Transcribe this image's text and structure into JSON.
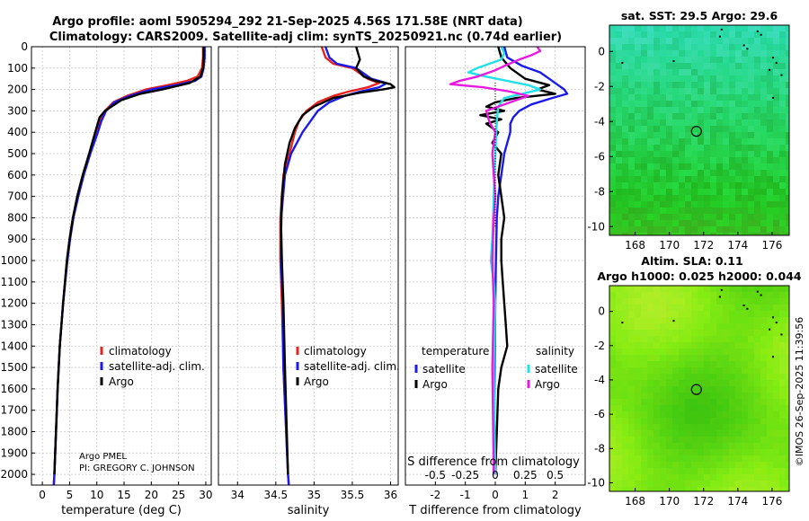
{
  "title": {
    "line1": "Argo profile: aoml 5905294_292 21-Sep-2025 4.56S 171.58E (NRT data)",
    "line2": "Climatology: CARS2009. Satellite-adj clim: synTS_20250921.nc (0.74d earlier)"
  },
  "credit": {
    "line1": "Argo PMEL",
    "line2": "PI: GREGORY C. JOHNSON"
  },
  "watermark": "©IMOS 26-Sep-2025 11:39:56",
  "colors": {
    "climatology": "#e8231c",
    "satellite": "#1a1aef",
    "argo": "#000000",
    "sat_salinity": "#22e0e8",
    "argo_salinity": "#e81ce0"
  },
  "chart_data": [
    {
      "id": "temperature",
      "type": "line",
      "xlabel": "temperature (deg C)",
      "ylabel": "",
      "xlim": [
        -2,
        31
      ],
      "ylim": [
        2050,
        0
      ],
      "xticks": [
        0,
        5,
        10,
        15,
        20,
        25,
        30
      ],
      "yticks": [
        0,
        100,
        200,
        300,
        400,
        500,
        600,
        700,
        800,
        900,
        1000,
        1100,
        1200,
        1300,
        1400,
        1500,
        1600,
        1700,
        1800,
        1900,
        2000
      ],
      "legend": [
        "climatology",
        "satellite-adj. clim.",
        "Argo"
      ],
      "series": [
        {
          "name": "climatology",
          "color": "#e8231c",
          "depth": [
            0,
            50,
            100,
            140,
            160,
            180,
            200,
            230,
            260,
            300,
            350,
            400,
            500,
            600,
            700,
            800,
            900,
            1000,
            1200,
            1400,
            1600,
            1800,
            2000,
            2050
          ],
          "values": [
            29.5,
            29.5,
            29.3,
            28.5,
            26.5,
            23,
            19,
            15.5,
            13,
            11.5,
            10.6,
            10,
            8.7,
            7.5,
            6.5,
            5.6,
            5,
            4.5,
            3.8,
            3.2,
            2.8,
            2.5,
            2.2,
            2.1
          ]
        },
        {
          "name": "satellite-adj. clim.",
          "color": "#1a1aef",
          "depth": [
            0,
            50,
            100,
            140,
            160,
            180,
            200,
            230,
            260,
            300,
            350,
            400,
            500,
            600,
            700,
            800,
            900,
            1000,
            1200,
            1400,
            1600,
            1800,
            2000,
            2050
          ],
          "values": [
            29.8,
            29.8,
            29.6,
            29.2,
            28,
            24.5,
            20,
            16,
            13.2,
            11.7,
            10.8,
            10.2,
            8.8,
            7.6,
            6.6,
            5.7,
            5.1,
            4.6,
            3.8,
            3.2,
            2.8,
            2.5,
            2.2,
            2.1
          ]
        },
        {
          "name": "Argo",
          "color": "#000000",
          "depth": [
            0,
            50,
            100,
            140,
            170,
            200,
            220,
            250,
            300,
            330,
            400,
            500,
            600,
            700,
            800,
            900,
            1000,
            1200,
            1400,
            1600,
            1800,
            2000
          ],
          "values": [
            29.6,
            29.6,
            29.5,
            29,
            27,
            22,
            18,
            14.5,
            11.5,
            10.5,
            9.7,
            8.6,
            7.4,
            6.4,
            5.6,
            5,
            4.5,
            3.8,
            3.2,
            2.8,
            2.5,
            2.2
          ]
        }
      ]
    },
    {
      "id": "salinity",
      "type": "line",
      "xlabel": "salinity",
      "xlim": [
        33.75,
        36.1
      ],
      "ylim": [
        2050,
        0
      ],
      "xticks": [
        34,
        34.5,
        35,
        35.5,
        36
      ],
      "legend": [
        "climatology",
        "satellite-adj. clim.",
        "Argo"
      ],
      "series": [
        {
          "name": "climatology",
          "color": "#e8231c",
          "depth": [
            0,
            50,
            80,
            100,
            150,
            170,
            190,
            210,
            230,
            260,
            300,
            350,
            400,
            500,
            600,
            800,
            1000,
            1200,
            1500,
            2000,
            2050
          ],
          "values": [
            35.1,
            35.15,
            35.25,
            35.5,
            35.7,
            35.85,
            35.7,
            35.45,
            35.25,
            35.05,
            34.9,
            34.8,
            34.75,
            34.68,
            34.6,
            34.56,
            34.56,
            34.58,
            34.6,
            34.66,
            34.67
          ]
        },
        {
          "name": "satellite-adj. clim.",
          "color": "#1a1aef",
          "depth": [
            0,
            50,
            80,
            100,
            150,
            170,
            190,
            210,
            230,
            260,
            300,
            350,
            400,
            500,
            600,
            800,
            1000,
            1200,
            1500,
            2000,
            2050
          ],
          "values": [
            35.15,
            35.2,
            35.3,
            35.55,
            35.75,
            35.95,
            35.85,
            35.6,
            35.4,
            35.2,
            35.05,
            34.95,
            34.85,
            34.7,
            34.62,
            34.57,
            34.57,
            34.59,
            34.6,
            34.66,
            34.67
          ]
        },
        {
          "name": "Argo",
          "color": "#000000",
          "depth": [
            0,
            60,
            100,
            140,
            160,
            175,
            190,
            200,
            215,
            240,
            280,
            320,
            380,
            450,
            550,
            700,
            850,
            1000,
            1200,
            1500,
            2000
          ],
          "values": [
            35.55,
            35.6,
            35.55,
            35.65,
            35.8,
            36.0,
            36.05,
            35.9,
            35.6,
            35.25,
            35.0,
            34.85,
            34.75,
            34.68,
            34.62,
            34.58,
            34.57,
            34.58,
            34.6,
            34.62,
            34.66
          ]
        }
      ]
    },
    {
      "id": "difference",
      "type": "line",
      "xlabel": "T difference from climatology",
      "top_label": "S difference from climatology",
      "xlim": [
        -3.0,
        3.0
      ],
      "ylim": [
        2050,
        0
      ],
      "xticks": [
        -2,
        -1,
        0,
        1,
        2
      ],
      "top_ticks": [
        "-0.5",
        "-0.25",
        "0",
        "0.25",
        "0.5"
      ],
      "top_ticks_pos": [
        -2,
        -1,
        0,
        1,
        2
      ],
      "legend_headers": [
        "temperature",
        "salinity"
      ],
      "legend_left": [
        "satellite",
        "Argo"
      ],
      "legend_right": [
        "satellite",
        "Argo"
      ],
      "series": [
        {
          "name": "T satellite",
          "color": "#1a1aef",
          "depth": [
            0,
            50,
            90,
            120,
            150,
            180,
            200,
            220,
            240,
            270,
            300,
            330,
            360,
            400,
            450,
            500,
            600,
            700,
            800,
            1000,
            1200,
            1500,
            2000
          ],
          "values": [
            0.3,
            0.4,
            0.9,
            1.5,
            1.8,
            2.1,
            2.3,
            2.4,
            1.9,
            1.2,
            0.8,
            0.6,
            0.5,
            0.5,
            0.4,
            0.3,
            0.2,
            0.1,
            0.05,
            0.02,
            0.0,
            -0.02,
            -0.05
          ]
        },
        {
          "name": "T Argo",
          "color": "#000000",
          "depth": [
            0,
            50,
            100,
            150,
            180,
            200,
            220,
            240,
            260,
            280,
            300,
            320,
            340,
            360,
            400,
            450,
            500,
            600,
            700,
            800,
            900,
            1000,
            1100,
            1200,
            1300,
            1400,
            1500,
            1600,
            1800,
            2000
          ],
          "values": [
            0.1,
            0.2,
            0.5,
            1.0,
            1.8,
            1.4,
            2.0,
            0.7,
            0.0,
            -0.3,
            0.3,
            -0.5,
            0.2,
            -0.3,
            0.1,
            -0.1,
            0.2,
            0.1,
            0.2,
            0.3,
            0.2,
            0.2,
            0.25,
            0.3,
            0.35,
            0.4,
            0.2,
            0.1,
            0.05,
            0.0
          ]
        },
        {
          "name": "S satellite",
          "color": "#22e0e8",
          "depth": [
            0,
            30,
            60,
            100,
            120,
            140,
            160,
            180,
            200,
            220,
            240,
            280,
            350,
            500,
            700,
            900,
            1000,
            1100,
            1200,
            1500,
            2000
          ],
          "values": [
            0.2,
            0.3,
            0.2,
            -0.6,
            -0.9,
            -0.3,
            0.4,
            1.1,
            1.5,
            0.9,
            0.3,
            0.1,
            0.05,
            0.0,
            -0.05,
            -0.1,
            -0.15,
            -0.05,
            0.0,
            -0.05,
            0.0
          ]
        },
        {
          "name": "S Argo",
          "color": "#e81ce0",
          "depth": [
            0,
            20,
            40,
            60,
            90,
            110,
            140,
            160,
            175,
            190,
            210,
            230,
            260,
            300,
            350,
            400,
            500,
            600,
            700,
            800,
            1000,
            1200,
            1500,
            2000
          ],
          "values": [
            1.4,
            1.5,
            1.2,
            0.8,
            0.3,
            0.0,
            -0.6,
            -1.2,
            -1.5,
            -0.4,
            0.5,
            1.1,
            0.5,
            -0.3,
            -0.2,
            0.0,
            -0.1,
            -0.05,
            0.0,
            -0.05,
            -0.1,
            -0.05,
            -0.1,
            -0.05
          ]
        }
      ]
    },
    {
      "id": "sst_map",
      "type": "heatmap",
      "title": "sat. SST: 29.5 Argo: 29.6",
      "xlim": [
        166.5,
        177
      ],
      "ylim": [
        -10.5,
        1.5
      ],
      "xticks": [
        168,
        170,
        172,
        174,
        176
      ],
      "yticks": [
        0,
        -2,
        -4,
        -6,
        -8,
        -10
      ],
      "marker": {
        "lon": 171.58,
        "lat": -4.56
      }
    },
    {
      "id": "sla_map",
      "type": "heatmap",
      "title_line1": "Altim. SLA: 0.11",
      "title_line2": "Argo h1000: 0.025 h2000: 0.044",
      "xlim": [
        166.5,
        177
      ],
      "ylim": [
        -10.5,
        1.5
      ],
      "xticks": [
        168,
        170,
        172,
        174,
        176
      ],
      "yticks": [
        0,
        -2,
        -4,
        -6,
        -8,
        -10
      ],
      "marker": {
        "lon": 171.58,
        "lat": -4.56
      }
    }
  ]
}
